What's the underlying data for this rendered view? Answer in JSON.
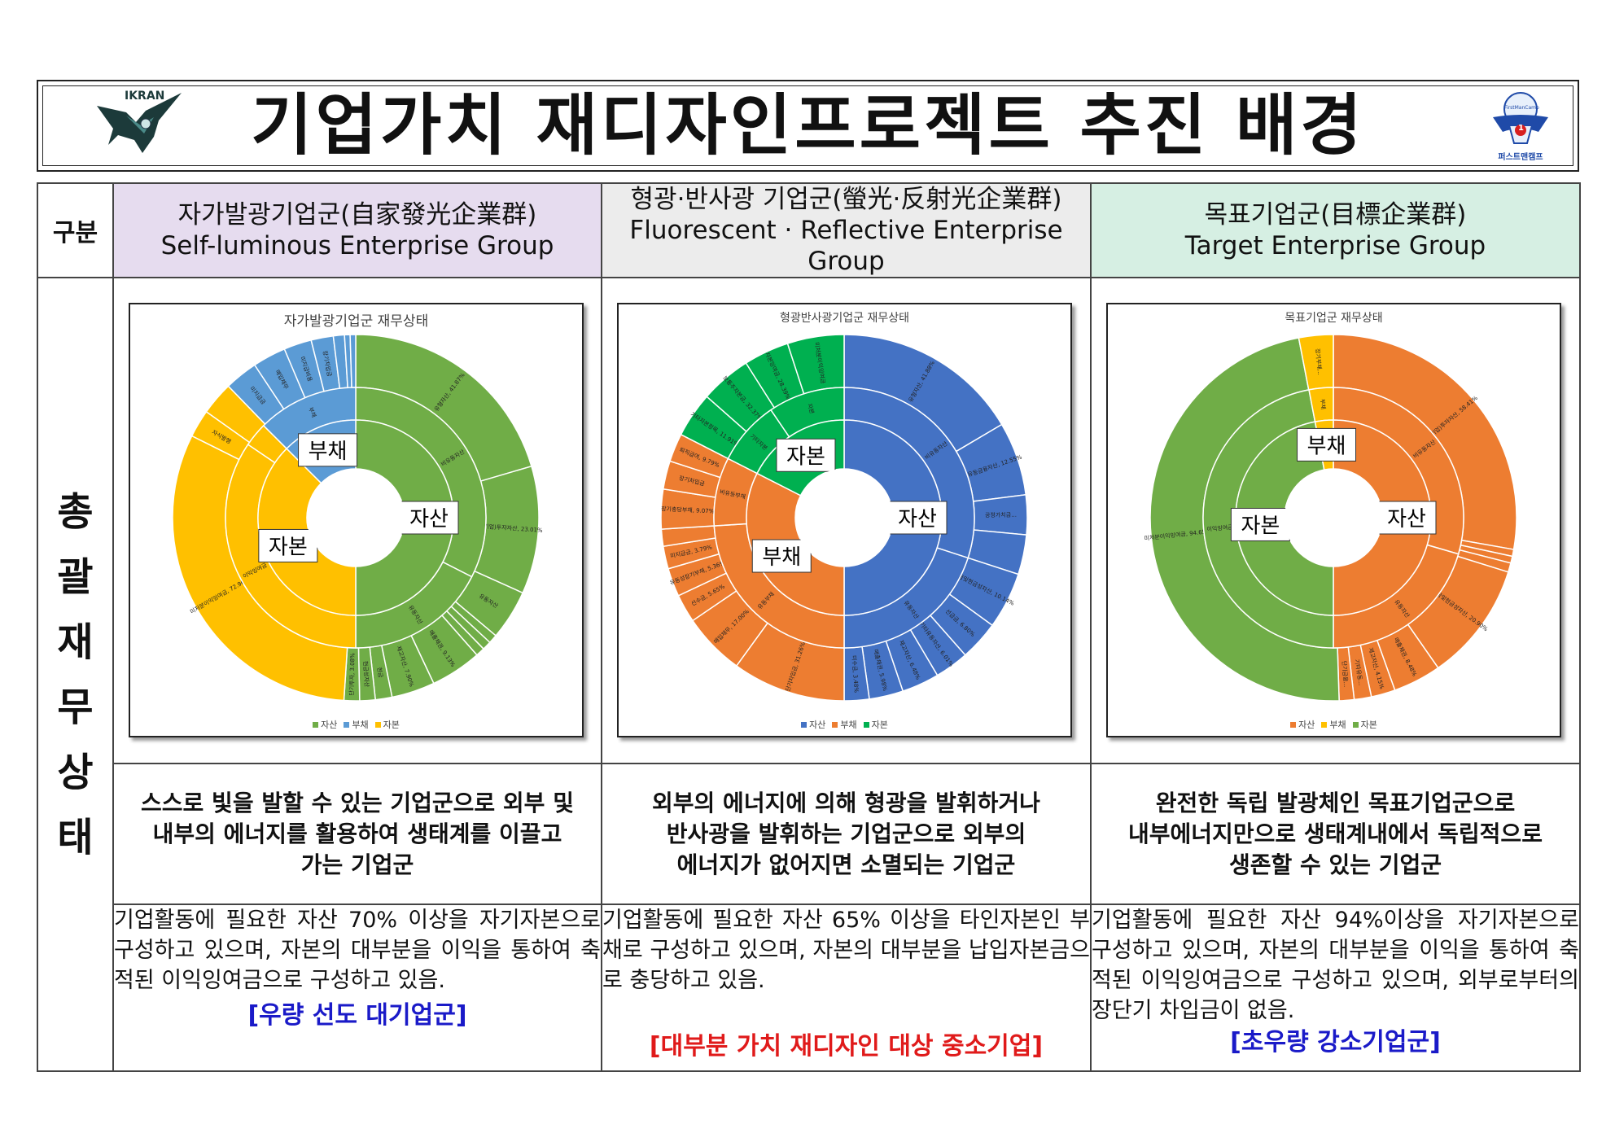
{
  "page_title": "기업가치 재디자인프로젝트 추진 배경",
  "logos": {
    "left_text": "IKRAN",
    "right_text": "퍼스트맨캠프",
    "right_top_text": "FirstManCamp",
    "right_badge": "1"
  },
  "table": {
    "header_label": "구분",
    "side_label_chars": [
      "총",
      "괄",
      "재",
      "무",
      "상",
      "태"
    ],
    "columns": [
      {
        "title_ko": "자가발광기업군(自家發光企業群)",
        "title_en": "Self-luminous  Enterprise  Group",
        "description": [
          "스스로 빛을 발할 수 있는 기업군으로 외부 및",
          "내부의 에너지를 활용하여 생태계를 이끌고",
          "가는 기업군"
        ],
        "detail": "기업활동에 필요한 자산 70% 이상을 자기자본으로 구성하고 있으며, 자본의 대부분을 이익을 통하여 축적된 이익잉여금으로 구성하고 있음.",
        "tag": "[우량 선도 대기업군]"
      },
      {
        "title_ko": "형광·반사광 기업군(螢光·反射光企業群)",
        "title_en": "Fluorescent · Reflective Enterprise Group",
        "description": [
          "외부의 에너지에 의해 형광을 발휘하거나",
          "반사광을 발휘하는 기업군으로 외부의",
          "에너지가 없어지면 소멸되는 기업군"
        ],
        "detail": "기업활동에 필요한 자산 65% 이상을 타인자본인 부채로 구성하고 있으며, 자본의 대부분을 납입자본금으로 충당하고 있음.",
        "tag": "[대부분 가치 재디자인 대상 중소기업]"
      },
      {
        "title_ko": "목표기업군(目標企業群)",
        "title_en": "Target  Enterprise  Group",
        "description": [
          "완전한 독립 발광체인 목표기업군으로",
          "내부에너지만으로 생태계내에서 독립적으로",
          "생존할 수 있는 기업군"
        ],
        "detail": "기업활동에 필요한 자산 94%이상을 자기자본으로 구성하고 있으며, 자본의 대부분을 이익을 통하여 축적된 이익잉여금으로 구성하고 있으며, 외부로부터의 장단기 차입금이 없음.",
        "tag": "[초우량 강소기업군]"
      }
    ]
  },
  "colors": {
    "asset_green": "#70ad47",
    "asset_blue": "#4472c4",
    "asset_orange": "#ed7d31",
    "liability_blue": "#5b9bd5",
    "equity_yellow": "#ffc000",
    "equity_green": "#00b050",
    "tag_blue": "#1a1ac8",
    "tag_red": "#e01a1a"
  },
  "chart_data": [
    {
      "type": "pie",
      "subtype": "sunburst",
      "title": "자가발광기업군 재무상태",
      "legend": [
        "자산",
        "부채",
        "자본"
      ],
      "legend_colors": [
        "#70ad47",
        "#5b9bd5",
        "#ffc000"
      ],
      "inner_ring": [
        {
          "label": "자산",
          "value": 50,
          "color": "#70ad47"
        },
        {
          "label": "자본",
          "value": 37.5,
          "color": "#ffc000"
        },
        {
          "label": "부채",
          "value": 12.5,
          "color": "#5b9bd5"
        }
      ],
      "middle_ring": [
        {
          "label": "비유동자산",
          "value": 32.5,
          "color": "#70ad47"
        },
        {
          "label": "유동자산",
          "value": 17.5,
          "color": "#70ad47"
        },
        {
          "label": "이익잉여금",
          "value": 34.5,
          "color": "#ffc000"
        },
        {
          "label": "",
          "value": 3,
          "color": "#ffc000"
        },
        {
          "label": "부채",
          "value": 12.5,
          "color": "#5b9bd5"
        }
      ],
      "outer_ring": [
        {
          "label": "유형자산, 41.87%",
          "value": 20.9,
          "color": "#70ad47"
        },
        {
          "label": "(기업)투자자산, 23.01%",
          "value": 11.5,
          "color": "#70ad47"
        },
        {
          "label": "유동자산",
          "value": 4.5,
          "color": "#70ad47"
        },
        {
          "label": "",
          "value": 0.8,
          "color": "#70ad47"
        },
        {
          "label": "",
          "value": 0.8,
          "color": "#70ad47"
        },
        {
          "label": "",
          "value": 0.8,
          "color": "#70ad47"
        },
        {
          "label": "매출채권, 9.13%",
          "value": 4.6,
          "color": "#70ad47"
        },
        {
          "label": "재고자산, 7.90%",
          "value": 3.9,
          "color": "#70ad47"
        },
        {
          "label": "현금",
          "value": 1.5,
          "color": "#70ad47"
        },
        {
          "label": "현금성자산",
          "value": 1.4,
          "color": "#70ad47"
        },
        {
          "label": "단기투자, 3.08%",
          "value": 1.4,
          "color": "#70ad47"
        },
        {
          "label": "미처분이익잉여금, 72.96%",
          "value": 32.0,
          "color": "#ffc000"
        },
        {
          "label": "자식발행",
          "value": 2.5,
          "color": "#ffc000"
        },
        {
          "label": "",
          "value": 3,
          "color": "#ffc000"
        },
        {
          "label": "미지급금",
          "value": 3,
          "color": "#5b9bd5"
        },
        {
          "label": "매입채무",
          "value": 3,
          "color": "#5b9bd5"
        },
        {
          "label": "미지급비용",
          "value": 2.5,
          "color": "#5b9bd5"
        },
        {
          "label": "장기차입금",
          "value": 2,
          "color": "#5b9bd5"
        },
        {
          "label": "",
          "value": 1,
          "color": "#5b9bd5"
        },
        {
          "label": "",
          "value": 0.5,
          "color": "#5b9bd5"
        },
        {
          "label": "",
          "value": 0.5,
          "color": "#5b9bd5"
        }
      ]
    },
    {
      "type": "pie",
      "subtype": "sunburst",
      "title": "형광반사광기업군 재무상태",
      "legend": [
        "자산",
        "부채",
        "자본"
      ],
      "legend_colors": [
        "#4472c4",
        "#ed7d31",
        "#00b050"
      ],
      "inner_ring": [
        {
          "label": "자산",
          "value": 50,
          "color": "#4472c4"
        },
        {
          "label": "부채",
          "value": 32.5,
          "color": "#ed7d31"
        },
        {
          "label": "자본",
          "value": 17.5,
          "color": "#00b050"
        }
      ],
      "middle_ring": [
        {
          "label": "비유동자산",
          "value": 30,
          "color": "#4472c4"
        },
        {
          "label": "유동자산",
          "value": 20,
          "color": "#4472c4"
        },
        {
          "label": "유동부채",
          "value": 24,
          "color": "#ed7d31"
        },
        {
          "label": "비유동부채",
          "value": 8.5,
          "color": "#ed7d31"
        },
        {
          "label": "기타자본",
          "value": 8,
          "color": "#00b050"
        },
        {
          "label": "자본",
          "value": 9.5,
          "color": "#00b050"
        }
      ],
      "outer_ring": [
        {
          "label": "유형자산, 41.88%",
          "value": 16.5,
          "color": "#4472c4"
        },
        {
          "label": "비유동금융자산, 12.55%",
          "value": 6.5,
          "color": "#4472c4"
        },
        {
          "label": "공정가치금...",
          "value": 3.5,
          "color": "#4472c4"
        },
        {
          "label": "",
          "value": 3.5,
          "color": "#4472c4"
        },
        {
          "label": "현금및현금성자산, 10.14%",
          "value": 5,
          "color": "#4472c4"
        },
        {
          "label": "선급금, 6.80%",
          "value": 3.5,
          "color": "#4472c4"
        },
        {
          "label": "기타유동자산, 6.01%",
          "value": 3,
          "color": "#4472c4"
        },
        {
          "label": "재고자산, 6.48%",
          "value": 3.3,
          "color": "#4472c4"
        },
        {
          "label": "매출채권, 5.98%",
          "value": 3,
          "color": "#4472c4"
        },
        {
          "label": "미수금, 3.48%",
          "value": 2.2,
          "color": "#4472c4"
        },
        {
          "label": "단기차입금, 31.26%",
          "value": 10,
          "color": "#ed7d31"
        },
        {
          "label": "매입채무, 17.00%",
          "value": 5.5,
          "color": "#ed7d31"
        },
        {
          "label": "선수금, 5.65%",
          "value": 2.5,
          "color": "#ed7d31"
        },
        {
          "label": "유동성장기부채, 5.36%",
          "value": 2.5,
          "color": "#ed7d31"
        },
        {
          "label": "미지급금, 3.79%",
          "value": 2,
          "color": "#ed7d31"
        },
        {
          "label": "",
          "value": 1.5,
          "color": "#ed7d31"
        },
        {
          "label": "장기충당부채, 9.07%",
          "value": 3.5,
          "color": "#ed7d31"
        },
        {
          "label": "장기차입금",
          "value": 2.5,
          "color": "#ed7d31"
        },
        {
          "label": "퇴직급여, 9.79%",
          "value": 2.5,
          "color": "#ed7d31"
        },
        {
          "label": "기타자본항목, 11.91%",
          "value": 4,
          "color": "#00b050"
        },
        {
          "label": "보통주자본금, 32.37%",
          "value": 4.5,
          "color": "#00b050"
        },
        {
          "label": "자본잉여금, 28.39%",
          "value": 4,
          "color": "#00b050"
        },
        {
          "label": "미처분이익잉여금",
          "value": 5,
          "color": "#00b050"
        }
      ]
    },
    {
      "type": "pie",
      "subtype": "sunburst",
      "title": "목표기업군 재무상태",
      "legend": [
        "자산",
        "부채",
        "자본"
      ],
      "legend_colors": [
        "#ed7d31",
        "#ffc000",
        "#70ad47"
      ],
      "inner_ring": [
        {
          "label": "자산",
          "value": 50,
          "color": "#ed7d31"
        },
        {
          "label": "자본",
          "value": 47,
          "color": "#70ad47"
        },
        {
          "label": "부채",
          "value": 3,
          "color": "#ffc000"
        }
      ],
      "middle_ring": [
        {
          "label": "비유동자산",
          "value": 29.5,
          "color": "#ed7d31"
        },
        {
          "label": "유동자산",
          "value": 20.5,
          "color": "#ed7d31"
        },
        {
          "label": "이익잉여금",
          "value": 47,
          "color": "#70ad47"
        },
        {
          "label": "부채",
          "value": 3,
          "color": "#ffc000"
        }
      ],
      "outer_ring": [
        {
          "label": "(기업)투자자산, 58.41%",
          "value": 27.5,
          "color": "#ed7d31"
        },
        {
          "label": "",
          "value": 0.6,
          "color": "#ed7d31"
        },
        {
          "label": "",
          "value": 0.6,
          "color": "#ed7d31"
        },
        {
          "label": "",
          "value": 0.8,
          "color": "#ed7d31"
        },
        {
          "label": "현금및현금성자산, 20.90%",
          "value": 10.4,
          "color": "#ed7d31"
        },
        {
          "label": "매출채권, 8.48%",
          "value": 4.2,
          "color": "#ed7d31"
        },
        {
          "label": "재고자산, 4.15%",
          "value": 2.1,
          "color": "#ed7d31"
        },
        {
          "label": "기타유동...",
          "value": 1.5,
          "color": "#ed7d31"
        },
        {
          "label": "단기금융...",
          "value": 1.3,
          "color": "#ed7d31"
        },
        {
          "label": "미처분이익잉여금, 94.65%",
          "value": 47,
          "color": "#70ad47"
        },
        {
          "label": "장기부채...",
          "value": 3,
          "color": "#ffc000"
        }
      ]
    }
  ]
}
